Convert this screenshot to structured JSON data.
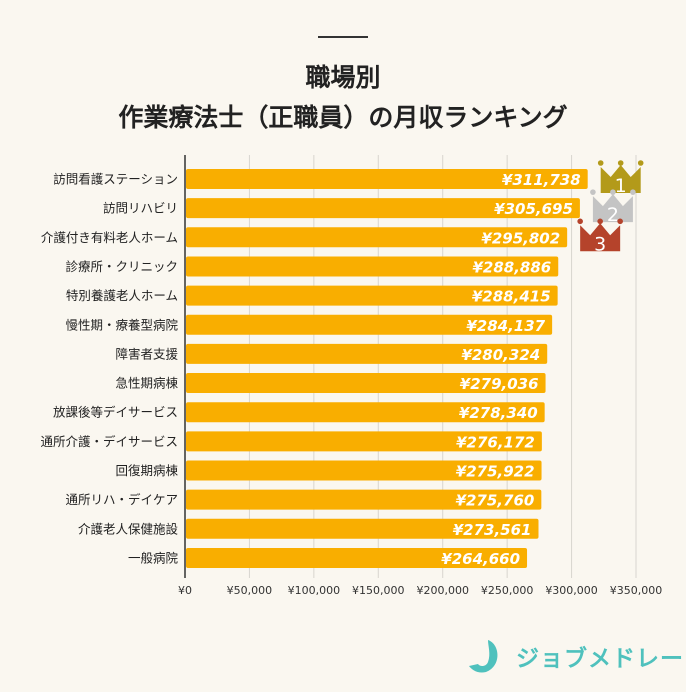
{
  "chart_data": {
    "type": "bar",
    "orientation": "horizontal",
    "title": [
      "職場別",
      "作業療法士（正職員）の月収ランキング"
    ],
    "categories": [
      "訪問看護ステーション",
      "訪問リハビリ",
      "介護付き有料老人ホーム",
      "診療所・クリニック",
      "特別養護老人ホーム",
      "慢性期・療養型病院",
      "障害者支援",
      "急性期病棟",
      "放課後等デイサービス",
      "通所介護・デイサービス",
      "回復期病棟",
      "通所リハ・デイケア",
      "介護老人保健施設",
      "一般病院"
    ],
    "values": [
      311738,
      305695,
      295802,
      288886,
      288415,
      284137,
      280324,
      279036,
      278340,
      276172,
      275922,
      275760,
      273561,
      264660
    ],
    "data_labels": [
      "¥311,738",
      "¥305,695",
      "¥295,802",
      "¥288,886",
      "¥288,415",
      "¥284,137",
      "¥280,324",
      "¥279,036",
      "¥278,340",
      "¥276,172",
      "¥275,922",
      "¥275,760",
      "¥273,561",
      "¥264,660"
    ],
    "xlim": [
      0,
      350000
    ],
    "xticks": [
      0,
      50000,
      100000,
      150000,
      200000,
      250000,
      300000,
      350000
    ],
    "xtick_labels": [
      "¥0",
      "¥50,000",
      "¥100,000",
      "¥150,000",
      "¥200,000",
      "¥250,000",
      "¥300,000",
      "¥350,000"
    ],
    "grid": true,
    "bar_color": "#f9ae00",
    "rank_badges": [
      {
        "rank": "1",
        "color": "#b39a1a"
      },
      {
        "rank": "2",
        "color": "#c4c4c4"
      },
      {
        "rank": "3",
        "color": "#b5432b"
      }
    ]
  },
  "brand": {
    "name": "ジョブメドレー",
    "color": "#4fc1bd"
  }
}
